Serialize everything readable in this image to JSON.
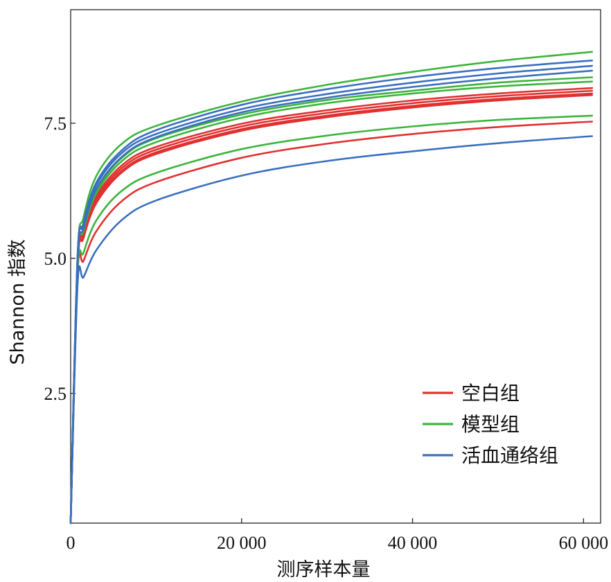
{
  "chart_data": {
    "type": "line",
    "title": "",
    "xlabel": "测序样本量",
    "ylabel": "Shannon 指数",
    "xlim": [
      0,
      62000
    ],
    "ylim": [
      0.1,
      9.6
    ],
    "x_ticks": [
      {
        "value": 0,
        "label": "0"
      },
      {
        "value": 20000,
        "label": "20 000"
      },
      {
        "value": 40000,
        "label": "40 000"
      },
      {
        "value": 60000,
        "label": "60 000"
      }
    ],
    "y_ticks": [
      {
        "value": 2.5,
        "label": "2.5"
      },
      {
        "value": 5.0,
        "label": "5.0"
      },
      {
        "value": 7.5,
        "label": "7.5"
      }
    ],
    "grid": false,
    "legend_position": "bottom-right",
    "groups": [
      {
        "name": "空白组",
        "color": "#e03030"
      },
      {
        "name": "模型组",
        "color": "#3cb43c"
      },
      {
        "name": "活血通络组",
        "color": "#3a6fbf"
      }
    ],
    "sample_x": [
      0,
      800,
      1500,
      3000,
      6000,
      10000,
      20000,
      30000,
      40000,
      50000,
      61000
    ],
    "series": [
      {
        "group": "空白组",
        "values": [
          0.1,
          4.8,
          5.5,
          6.15,
          6.72,
          7.06,
          7.49,
          7.74,
          7.92,
          8.05,
          8.15
        ]
      },
      {
        "group": "空白组",
        "values": [
          0.1,
          4.8,
          5.45,
          6.1,
          6.67,
          7.01,
          7.44,
          7.69,
          7.87,
          8.0,
          8.1
        ]
      },
      {
        "group": "空白组",
        "values": [
          0.1,
          4.8,
          5.4,
          6.05,
          6.62,
          6.96,
          7.39,
          7.64,
          7.82,
          7.95,
          8.05
        ]
      },
      {
        "group": "空白组",
        "values": [
          0.1,
          4.8,
          5.37,
          6.02,
          6.59,
          6.93,
          7.36,
          7.61,
          7.79,
          7.92,
          8.02
        ]
      },
      {
        "group": "空白组",
        "values": [
          0.1,
          4.7,
          4.95,
          5.5,
          6.06,
          6.41,
          6.86,
          7.12,
          7.3,
          7.43,
          7.53
        ]
      },
      {
        "group": "模型组",
        "values": [
          0.1,
          5.0,
          5.75,
          6.52,
          7.12,
          7.45,
          7.9,
          8.21,
          8.45,
          8.65,
          8.82
        ]
      },
      {
        "group": "模型组",
        "values": [
          0.1,
          4.9,
          5.55,
          6.25,
          6.86,
          7.22,
          7.66,
          7.93,
          8.1,
          8.25,
          8.35
        ]
      },
      {
        "group": "模型组",
        "values": [
          0.1,
          4.9,
          5.5,
          6.2,
          6.8,
          7.15,
          7.6,
          7.87,
          8.05,
          8.18,
          8.27
        ]
      },
      {
        "group": "模型组",
        "values": [
          0.1,
          4.7,
          5.1,
          5.7,
          6.25,
          6.58,
          7.02,
          7.27,
          7.44,
          7.56,
          7.64
        ]
      },
      {
        "group": "活血通络组",
        "values": [
          0.1,
          5.0,
          5.65,
          6.4,
          7.0,
          7.37,
          7.84,
          8.13,
          8.35,
          8.52,
          8.66
        ]
      },
      {
        "group": "活血通络组",
        "values": [
          0.1,
          5.0,
          5.6,
          6.35,
          6.95,
          7.3,
          7.76,
          8.04,
          8.25,
          8.42,
          8.56
        ]
      },
      {
        "group": "活血通络组",
        "values": [
          0.1,
          4.9,
          5.55,
          6.28,
          6.88,
          7.24,
          7.7,
          7.97,
          8.17,
          8.33,
          8.47
        ]
      },
      {
        "group": "活血通络组",
        "values": [
          0.1,
          4.5,
          4.65,
          5.15,
          5.71,
          6.07,
          6.53,
          6.8,
          6.98,
          7.13,
          7.26
        ]
      }
    ]
  }
}
